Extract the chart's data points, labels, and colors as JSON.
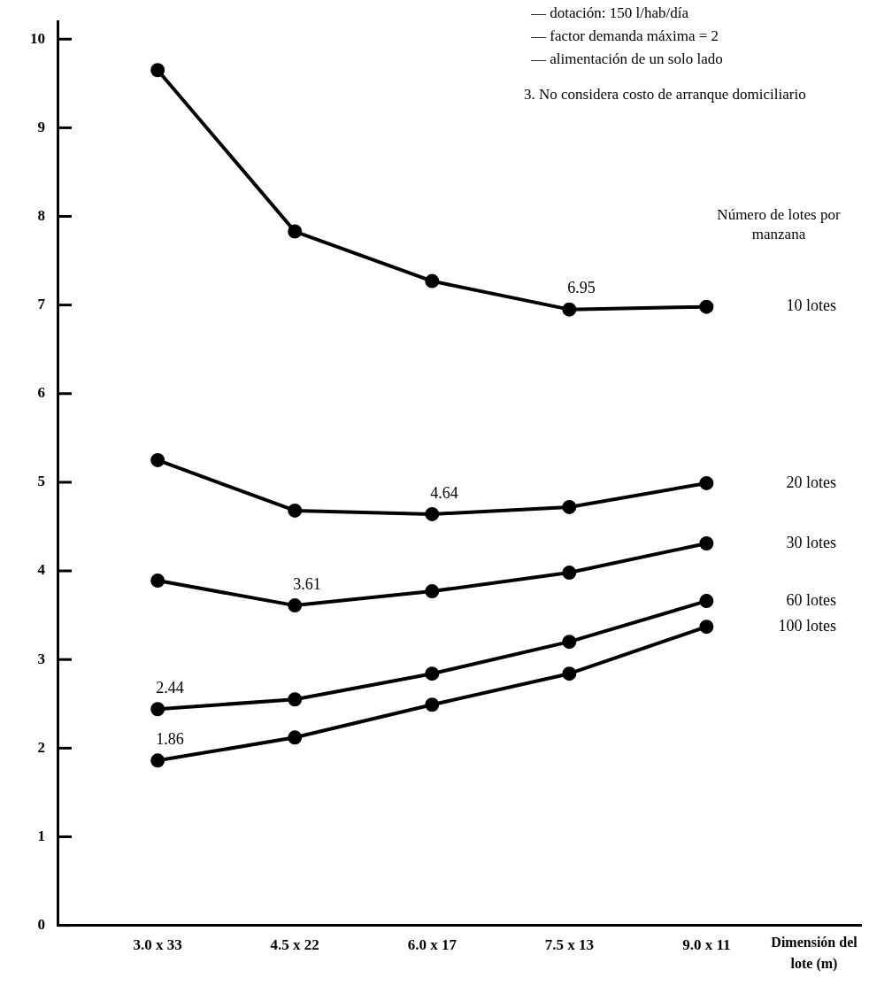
{
  "chart_data": {
    "type": "line",
    "xlabel": "Dimensión del lote (m)",
    "legend_title": "Número de lotes por manzana",
    "annotations": [
      "— dotación: 150 l/hab/día",
      "— factor demanda máxima = 2",
      "— alimentación de un solo lado",
      "3. No considera costo de arranque domiciliario"
    ],
    "categories": [
      "3.0 x 33",
      "4.5 x 22",
      "6.0 x 17",
      "7.5 x 13",
      "9.0 x 11"
    ],
    "ylim": [
      0,
      10.2
    ],
    "yticks": [
      0,
      1,
      2,
      3,
      4,
      5,
      6,
      7,
      8,
      9,
      10
    ],
    "grid": false,
    "marker": "circle",
    "line_style": "solid",
    "series": [
      {
        "name": "10 lotes",
        "color": "#000000",
        "values": [
          9.65,
          7.83,
          7.27,
          6.95,
          6.98
        ],
        "value_labels": [
          null,
          null,
          null,
          "6.95",
          null
        ]
      },
      {
        "name": "20 lotes",
        "color": "#000000",
        "values": [
          5.25,
          4.68,
          4.64,
          4.72,
          4.99
        ],
        "value_labels": [
          null,
          null,
          "4.64",
          null,
          null
        ]
      },
      {
        "name": "30 lotes",
        "color": "#000000",
        "values": [
          3.89,
          3.61,
          3.77,
          3.98,
          4.31
        ],
        "value_labels": [
          null,
          "3.61",
          null,
          null,
          null
        ]
      },
      {
        "name": "60 lotes",
        "color": "#000000",
        "values": [
          2.44,
          2.55,
          2.84,
          3.2,
          3.66
        ],
        "value_labels": [
          "2.44",
          null,
          null,
          null,
          null
        ]
      },
      {
        "name": "100 lotes",
        "color": "#000000",
        "values": [
          1.86,
          2.12,
          2.49,
          2.84,
          3.37
        ],
        "value_labels": [
          "1.86",
          null,
          null,
          null,
          null
        ]
      }
    ]
  }
}
